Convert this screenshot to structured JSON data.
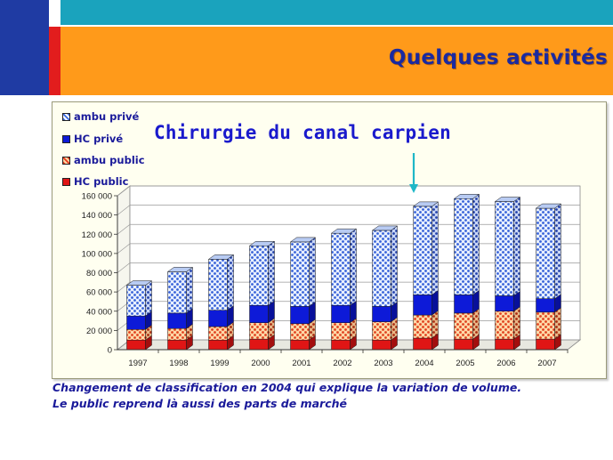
{
  "header": {
    "title": "Quelques activités"
  },
  "colors": {
    "accent_blue": "#1f3ba3",
    "accent_red": "#e21d1d",
    "accent_teal": "#1aa3bd",
    "header_orange": "#ff9a1a",
    "hc_public": "#e01515",
    "ambu_public": "#f0a060",
    "hc_prive": "#0d1ad8",
    "ambu_prive": "#4a78e6"
  },
  "chart_data": {
    "type": "bar",
    "stacked": true,
    "three_d": true,
    "title": "Chirurgie du canal carpien",
    "categories": [
      "1997",
      "1998",
      "1999",
      "2000",
      "2001",
      "2002",
      "2003",
      "2004",
      "2005",
      "2006",
      "2007"
    ],
    "series": [
      {
        "name": "HC public",
        "values": [
          10000,
          10000,
          10000,
          11000,
          10000,
          10000,
          10000,
          12000,
          11000,
          11000,
          11000
        ]
      },
      {
        "name": "ambu public",
        "values": [
          11000,
          12000,
          14000,
          17000,
          17000,
          18000,
          19000,
          24000,
          27000,
          29000,
          28000
        ]
      },
      {
        "name": "HC privé",
        "values": [
          14000,
          16000,
          17000,
          18000,
          18000,
          18000,
          16000,
          21000,
          19000,
          16000,
          14000
        ]
      },
      {
        "name": "ambu privé",
        "values": [
          32000,
          43000,
          53000,
          62000,
          67000,
          75000,
          79000,
          92000,
          100000,
          98000,
          94000
        ]
      }
    ],
    "yticks": [
      "0",
      "20 000",
      "40 000",
      "60 000",
      "80 000",
      "100 000",
      "120 000",
      "140 000",
      "160 000"
    ],
    "ylim": [
      0,
      160000
    ],
    "ystep": 20000,
    "grid": true,
    "legend": "top-left",
    "annotation": "arrow pointing at 2004"
  },
  "legend": {
    "items": [
      {
        "label": "ambu privé"
      },
      {
        "label": "HC privé"
      },
      {
        "label": "ambu public"
      },
      {
        "label": "HC public"
      }
    ]
  },
  "footnote": {
    "line1": "Changement de classification en 2004 qui explique la variation de volume.",
    "line2": "Le public reprend là aussi des parts de marché"
  }
}
